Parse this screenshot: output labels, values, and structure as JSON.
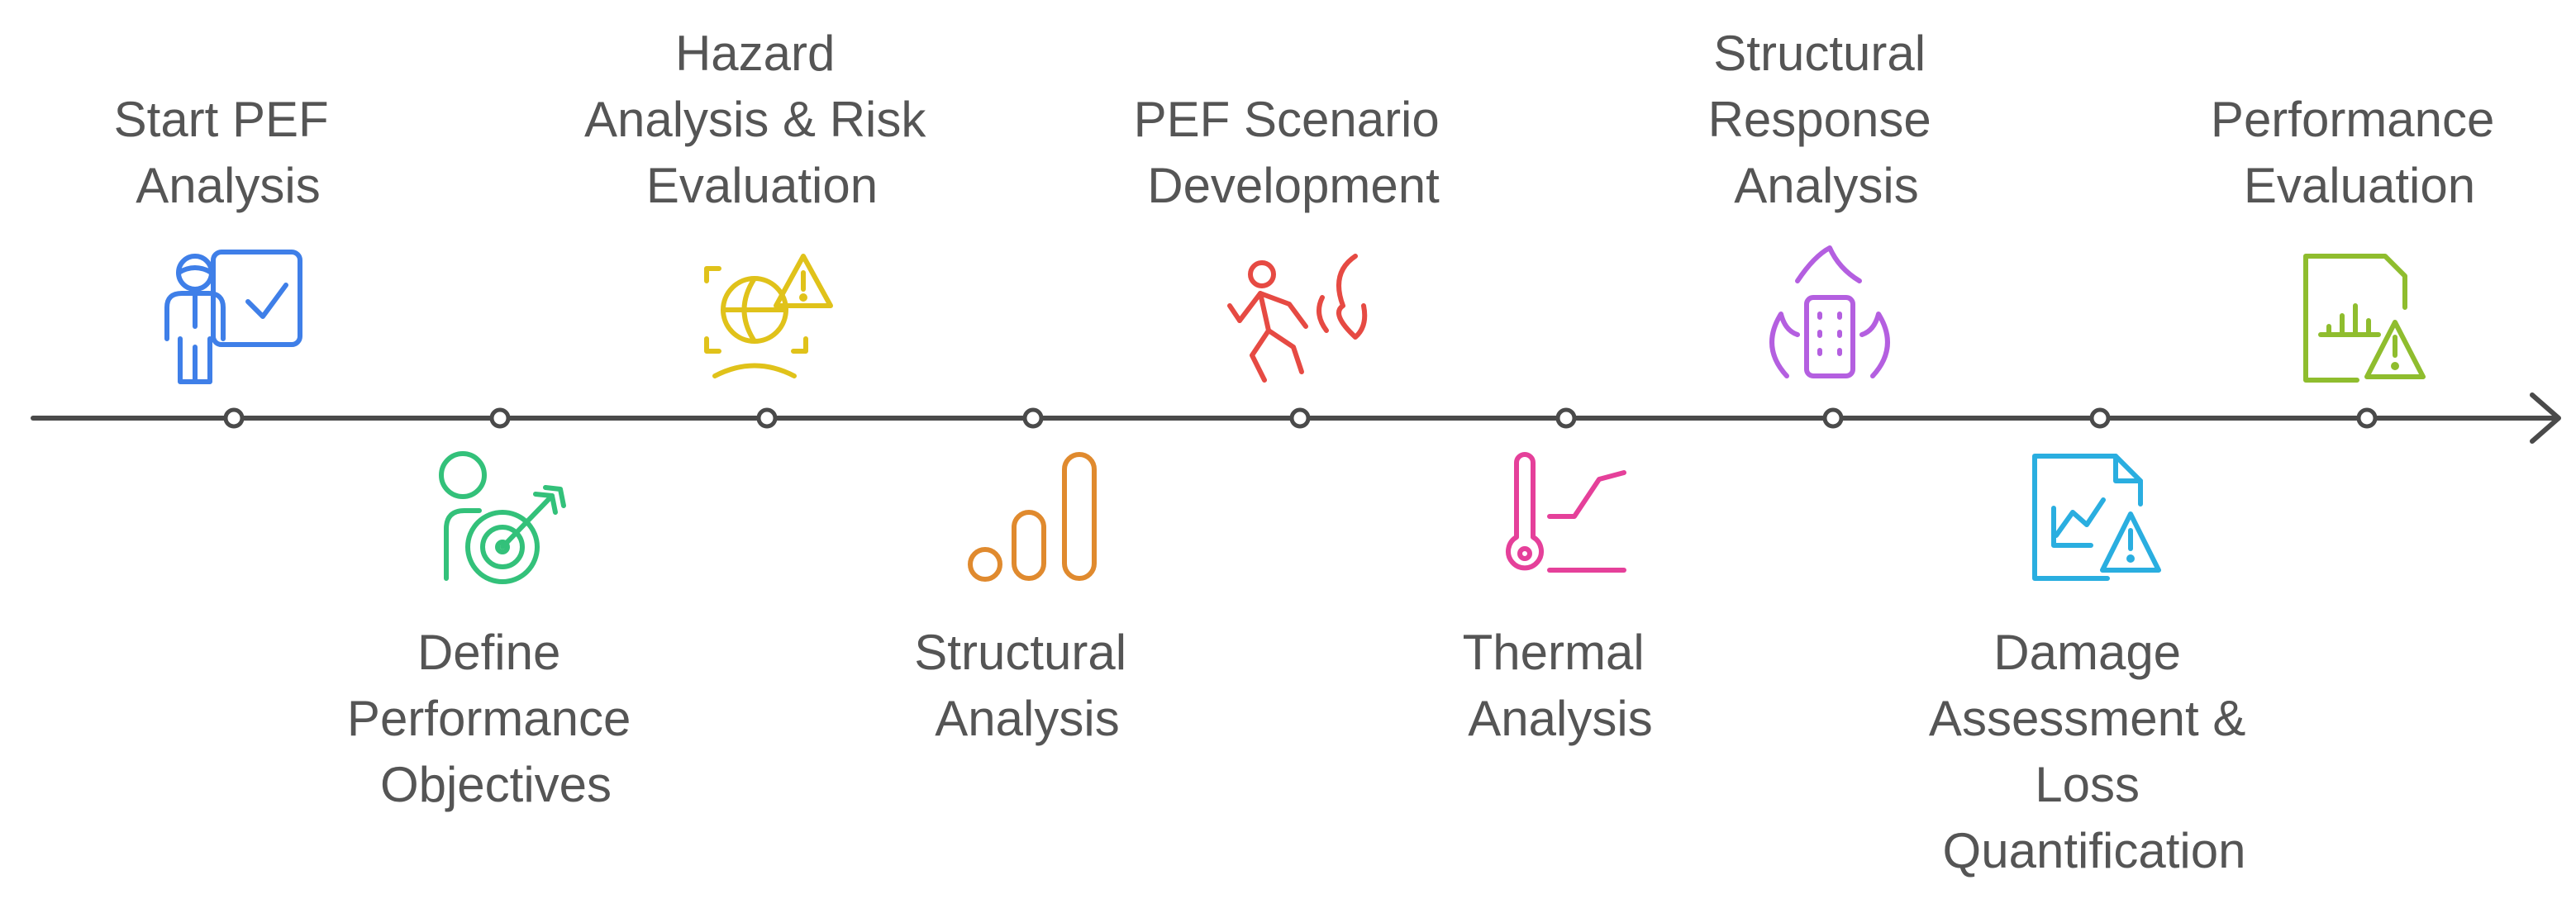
{
  "timeline": {
    "steps": [
      {
        "id": "start-pef-analysis",
        "label_lines": [
          "Start PEF",
          "Analysis"
        ],
        "icon": "presenter-checkmark-icon",
        "color": "#3f7fe8",
        "side": "above"
      },
      {
        "id": "define-performance-objectives",
        "label_lines": [
          "Define",
          "Performance",
          "Objectives"
        ],
        "icon": "person-target-icon",
        "color": "#33c17a",
        "side": "below"
      },
      {
        "id": "hazard-analysis-risk-evaluation",
        "label_lines": [
          "Hazard",
          "Analysis & Risk",
          "Evaluation"
        ],
        "icon": "globe-warning-icon",
        "color": "#e0c21a",
        "side": "above"
      },
      {
        "id": "structural-analysis",
        "label_lines": [
          "Structural",
          "Analysis"
        ],
        "icon": "bar-chart-icon",
        "color": "#e08a2e",
        "side": "below"
      },
      {
        "id": "pef-scenario-development",
        "label_lines": [
          "PEF Scenario",
          "Development"
        ],
        "icon": "person-fire-icon",
        "color": "#e64a43",
        "side": "above"
      },
      {
        "id": "thermal-analysis",
        "label_lines": [
          "Thermal",
          "Analysis"
        ],
        "icon": "thermometer-graph-icon",
        "color": "#e5409a",
        "side": "below"
      },
      {
        "id": "structural-response-analysis",
        "label_lines": [
          "Structural",
          "Response",
          "Analysis"
        ],
        "icon": "building-fire-icon",
        "color": "#b45fe0",
        "side": "above"
      },
      {
        "id": "damage-assessment-loss-quantification",
        "label_lines": [
          "Damage",
          "Assessment &",
          "Loss",
          "Quantification"
        ],
        "icon": "document-chart-warning-icon",
        "color": "#2aaee0",
        "side": "below"
      },
      {
        "id": "performance-evaluation",
        "label_lines": [
          "Performance",
          "Evaluation"
        ],
        "icon": "report-warning-icon",
        "color": "#8fbd2e",
        "side": "above"
      }
    ]
  },
  "colors": {
    "axis": "#4a4a4a",
    "text": "#555555"
  }
}
